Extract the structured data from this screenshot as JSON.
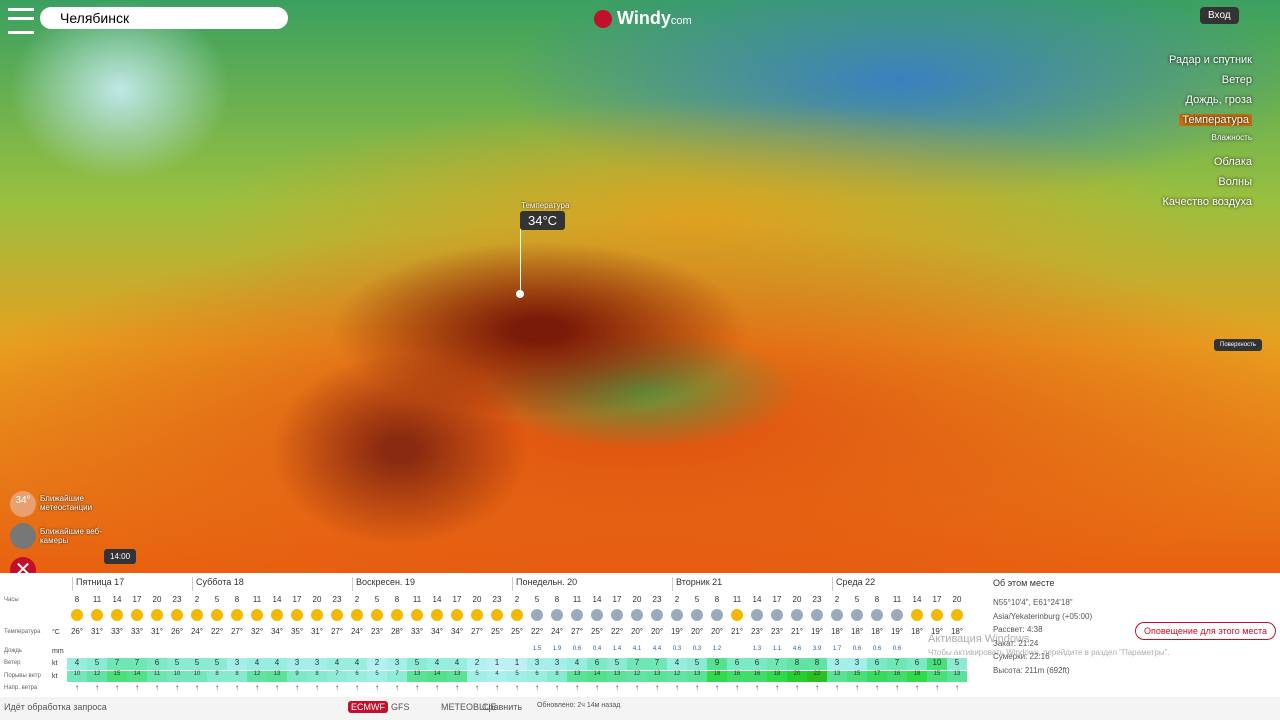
{
  "header": {
    "search": "Челябинск",
    "logo": "Windy",
    "logo_suffix": "com",
    "login": "Вход"
  },
  "layers": [
    "Радар и спутник",
    "Ветер",
    "Дождь, гроза",
    "Температура",
    "Влажность",
    "Облака",
    "Волны",
    "Качество воздуха"
  ],
  "popup": {
    "label": "Температура",
    "value": "34°C"
  },
  "surface": "Поверхность",
  "left": {
    "badge": "34°",
    "stations": "Ближайшие метеостанции",
    "webcams": "Ближайшие веб-камеры",
    "time": "14:00"
  },
  "forecast": {
    "row_labels": [
      "Часы",
      "Температура",
      "Дождь",
      "Ветер",
      "Порывы ветр",
      "Напр. ветра"
    ],
    "units": [
      "°C",
      "mm",
      "kt",
      "kt"
    ],
    "days": [
      {
        "name": "Пятница 17",
        "hours": [
          8,
          11,
          14,
          17,
          20,
          23
        ],
        "temps": [
          "26°",
          "31°",
          "33°",
          "33°",
          "31°",
          "26°"
        ],
        "rain": [
          null,
          null,
          null,
          null,
          null,
          null
        ],
        "wind": [
          4,
          5,
          7,
          7,
          6,
          5
        ],
        "gust": [
          10,
          12,
          15,
          14,
          11,
          10
        ]
      },
      {
        "name": "Суббота 18",
        "hours": [
          2,
          5,
          8,
          11,
          14,
          17,
          20,
          23
        ],
        "temps": [
          "24°",
          "22°",
          "27°",
          "32°",
          "34°",
          "35°",
          "31°",
          "27°"
        ],
        "rain": [
          null,
          null,
          null,
          null,
          null,
          null,
          null,
          null
        ],
        "wind": [
          5,
          5,
          3,
          4,
          4,
          3,
          3,
          4
        ],
        "gust": [
          10,
          8,
          8,
          12,
          13,
          9,
          8,
          7
        ]
      },
      {
        "name": "Воскресен. 19",
        "hours": [
          2,
          5,
          8,
          11,
          14,
          17,
          20,
          23
        ],
        "temps": [
          "24°",
          "23°",
          "28°",
          "33°",
          "34°",
          "34°",
          "27°",
          "25°"
        ],
        "rain": [
          null,
          null,
          null,
          null,
          null,
          null,
          null,
          null
        ],
        "wind": [
          4,
          2,
          3,
          5,
          4,
          4,
          2,
          1
        ],
        "gust": [
          6,
          5,
          7,
          13,
          14,
          13,
          5,
          4
        ]
      },
      {
        "name": "Понедельн. 20",
        "hours": [
          2,
          5,
          8,
          11,
          14,
          17,
          20,
          23
        ],
        "temps": [
          "25°",
          "22°",
          "24°",
          "27°",
          "25°",
          "22°",
          "20°",
          "20°"
        ],
        "rain": [
          null,
          1.5,
          1.9,
          0.6,
          0.4,
          1.4,
          4.1,
          4.4
        ],
        "wind": [
          1,
          3,
          3,
          4,
          6,
          5,
          7,
          7
        ],
        "gust": [
          5,
          6,
          8,
          13,
          14,
          13,
          12,
          13
        ]
      },
      {
        "name": "Вторник 21",
        "hours": [
          2,
          5,
          8,
          11,
          14,
          17,
          20,
          23
        ],
        "temps": [
          "19°",
          "20°",
          "20°",
          "21°",
          "23°",
          "23°",
          "21°",
          "19°"
        ],
        "rain": [
          0.3,
          0.3,
          1.2,
          null,
          1.3,
          1.1,
          4.6,
          3.9
        ],
        "wind": [
          4,
          5,
          9,
          6,
          6,
          7,
          8,
          8
        ],
        "gust": [
          12,
          13,
          18,
          16,
          16,
          18,
          20,
          22
        ]
      },
      {
        "name": "Среда 22",
        "hours": [
          2,
          5,
          8,
          11,
          14,
          17,
          20
        ],
        "temps": [
          "18°",
          "18°",
          "18°",
          "19°",
          "18°",
          "19°",
          "18°"
        ],
        "rain": [
          1.7,
          0.6,
          0.6,
          0.6,
          null,
          null,
          null
        ],
        "wind": [
          3,
          3,
          6,
          7,
          6,
          10,
          5
        ],
        "gust": [
          13,
          15,
          17,
          16,
          18,
          15,
          13
        ]
      }
    ]
  },
  "place": {
    "title": "Об этом месте",
    "coords": "N55°10'4\", E61°24'18\"",
    "tz": "Asia/Yekaterinburg (+05:00)",
    "sunrise": "Рассвет: 4:38",
    "sunset": "Закат: 21:24",
    "dusk": "Сумерки: 22:16",
    "alt": "Высота: 211m (692ft)",
    "alert": "Оповещение для этого места"
  },
  "bottom": {
    "status": "Идёт обработка запроса",
    "models": [
      "ECMWF",
      "GFS",
      "METEOBLUE"
    ],
    "compare": "Сравнить",
    "updated": "Обновлено: 2ч 14м назад"
  },
  "watermark": {
    "title": "Активация Windows",
    "text": "Чтобы активировать Windows, перейдите в раздел \"Параметры\"."
  }
}
